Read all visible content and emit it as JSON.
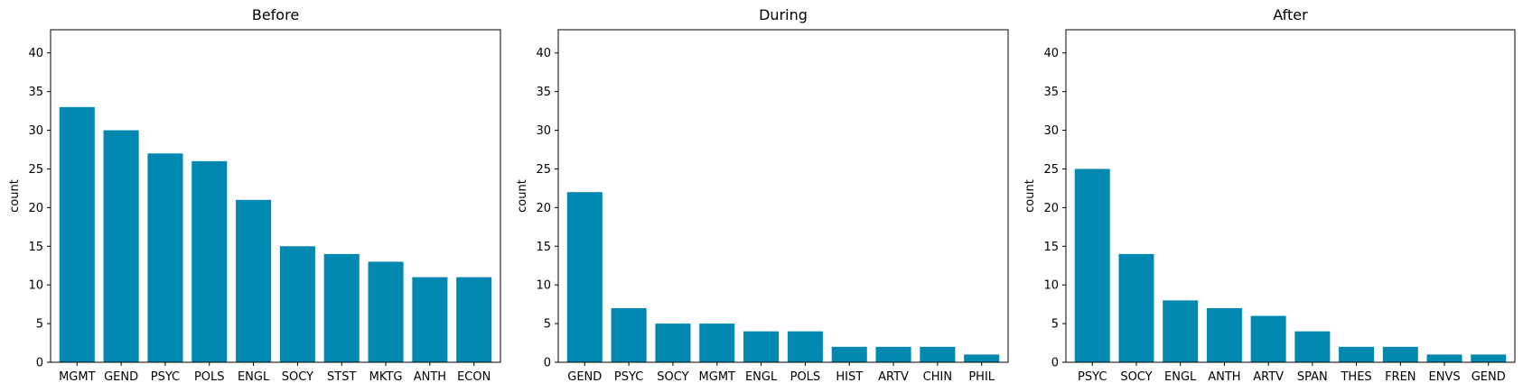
{
  "chart_data": [
    {
      "type": "bar",
      "title": "Before",
      "xlabel": "",
      "ylabel": "count",
      "ylim": [
        0,
        43
      ],
      "yticks": [
        0,
        5,
        10,
        15,
        20,
        25,
        30,
        35,
        40
      ],
      "grid": false,
      "color": "#0088b0",
      "categories": [
        "MGMT",
        "GEND",
        "PSYC",
        "POLS",
        "ENGL",
        "SOCY",
        "STST",
        "MKTG",
        "ANTH",
        "ECON"
      ],
      "values": [
        33,
        30,
        27,
        26,
        21,
        15,
        14,
        13,
        11,
        11
      ]
    },
    {
      "type": "bar",
      "title": "During",
      "xlabel": "",
      "ylabel": "count",
      "ylim": [
        0,
        43
      ],
      "yticks": [
        0,
        5,
        10,
        15,
        20,
        25,
        30,
        35,
        40
      ],
      "grid": false,
      "color": "#0088b0",
      "categories": [
        "GEND",
        "PSYC",
        "SOCY",
        "MGMT",
        "ENGL",
        "POLS",
        "HIST",
        "ARTV",
        "CHIN",
        "PHIL"
      ],
      "values": [
        22,
        7,
        5,
        5,
        4,
        4,
        2,
        2,
        2,
        1
      ]
    },
    {
      "type": "bar",
      "title": "After",
      "xlabel": "",
      "ylabel": "count",
      "ylim": [
        0,
        43
      ],
      "yticks": [
        0,
        5,
        10,
        15,
        20,
        25,
        30,
        35,
        40
      ],
      "grid": false,
      "color": "#0088b0",
      "categories": [
        "PSYC",
        "SOCY",
        "ENGL",
        "ANTH",
        "ARTV",
        "SPAN",
        "THES",
        "FREN",
        "ENVS",
        "GEND"
      ],
      "values": [
        25,
        14,
        8,
        7,
        6,
        4,
        2,
        2,
        1,
        1
      ]
    }
  ]
}
